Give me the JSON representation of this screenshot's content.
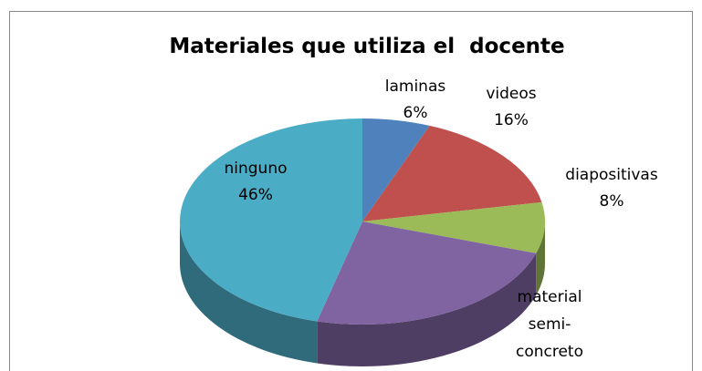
{
  "chart_data": {
    "type": "pie",
    "title": "Materiales que utiliza el  docente",
    "categories": [
      "laminas",
      "videos",
      "diapositivas",
      "material semi-concreto",
      "ninguno"
    ],
    "values": [
      6,
      16,
      8,
      24,
      46
    ],
    "value_labels": [
      "6%",
      "16%",
      "8%",
      null,
      "46%"
    ],
    "colors": [
      "#4f81bd",
      "#c0504d",
      "#9bbb59",
      "#8064a2",
      "#4bacc6"
    ]
  }
}
